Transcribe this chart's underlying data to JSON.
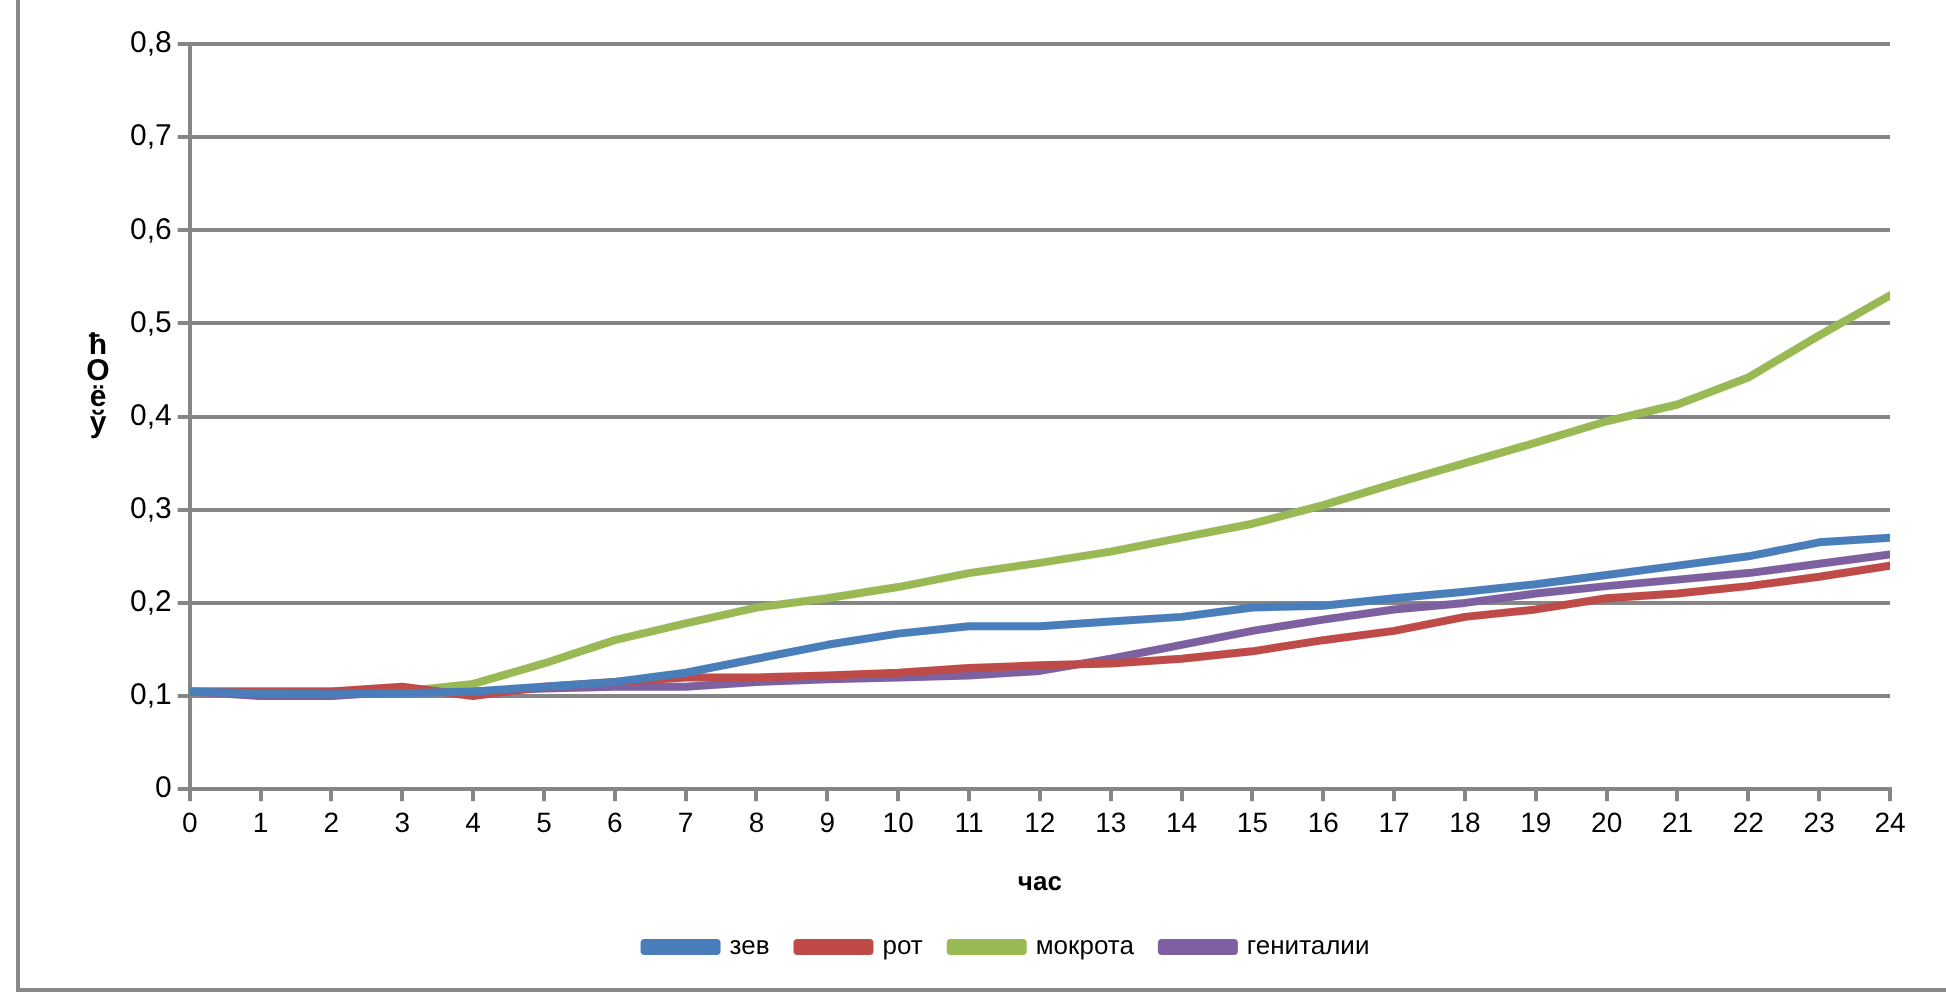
{
  "chart_data": {
    "type": "line",
    "xlabel": "час",
    "ylabel": "ћОёў",
    "x": [
      0,
      1,
      2,
      3,
      4,
      5,
      6,
      7,
      8,
      9,
      10,
      11,
      12,
      13,
      14,
      15,
      16,
      17,
      18,
      19,
      20,
      21,
      22,
      23,
      24
    ],
    "xlim": [
      0,
      24
    ],
    "xticks": [
      0,
      1,
      2,
      3,
      4,
      5,
      6,
      7,
      8,
      9,
      10,
      11,
      12,
      13,
      14,
      15,
      16,
      17,
      18,
      19,
      20,
      21,
      22,
      23,
      24
    ],
    "ylim": [
      0,
      0.8
    ],
    "yticks": [
      {
        "value": 0,
        "label": "0"
      },
      {
        "value": 0.1,
        "label": "0,1"
      },
      {
        "value": 0.2,
        "label": "0,2"
      },
      {
        "value": 0.3,
        "label": "0,3"
      },
      {
        "value": 0.4,
        "label": "0,4"
      },
      {
        "value": 0.5,
        "label": "0,5"
      },
      {
        "value": 0.6,
        "label": "0,6"
      },
      {
        "value": 0.7,
        "label": "0,7"
      },
      {
        "value": 0.8,
        "label": "0,8"
      }
    ],
    "grid": "y",
    "legend": "bottom",
    "marker": "none",
    "line_style": "solid",
    "series": [
      {
        "name": "зев",
        "color": "#4a7ebb",
        "values": [
          0.105,
          0.103,
          0.102,
          0.103,
          0.105,
          0.11,
          0.115,
          0.125,
          0.14,
          0.155,
          0.167,
          0.175,
          0.175,
          0.18,
          0.185,
          0.195,
          0.197,
          0.205,
          0.212,
          0.22,
          0.23,
          0.24,
          0.25,
          0.265,
          0.27
        ]
      },
      {
        "name": "рот",
        "color": "#be4b48",
        "values": [
          0.105,
          0.105,
          0.105,
          0.11,
          0.1,
          0.11,
          0.115,
          0.12,
          0.12,
          0.122,
          0.125,
          0.13,
          0.133,
          0.135,
          0.14,
          0.148,
          0.16,
          0.17,
          0.185,
          0.193,
          0.205,
          0.21,
          0.218,
          0.228,
          0.24
        ]
      },
      {
        "name": "мокрота",
        "color": "#98b954",
        "values": [
          0.105,
          0.105,
          0.105,
          0.105,
          0.113,
          0.135,
          0.16,
          0.178,
          0.195,
          0.205,
          0.217,
          0.232,
          0.243,
          0.255,
          0.27,
          0.285,
          0.305,
          0.328,
          0.35,
          0.372,
          0.395,
          0.413,
          0.442,
          0.487,
          0.53
        ]
      },
      {
        "name": "гениталии",
        "color": "#7d60a0",
        "values": [
          0.105,
          0.1,
          0.1,
          0.105,
          0.105,
          0.108,
          0.11,
          0.11,
          0.115,
          0.118,
          0.12,
          0.122,
          0.127,
          0.14,
          0.155,
          0.17,
          0.182,
          0.193,
          0.2,
          0.21,
          0.218,
          0.225,
          0.232,
          0.242,
          0.252
        ]
      }
    ]
  }
}
